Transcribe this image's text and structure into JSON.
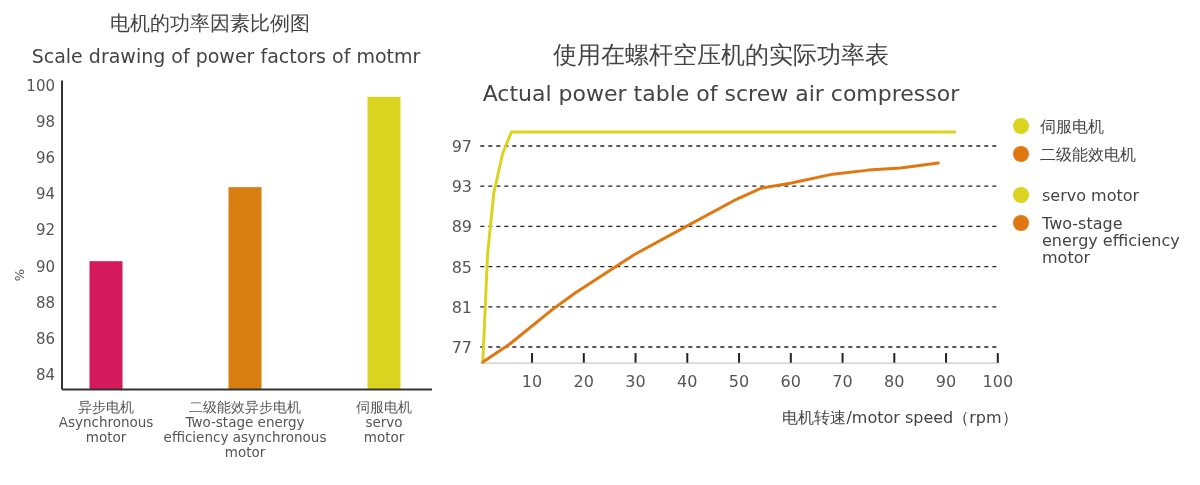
{
  "chart_data": [
    {
      "type": "bar",
      "title": "电机的功率因素比例图",
      "subtitle": "Scale drawing of power factors of motmr",
      "ylabel": "%",
      "categories": [
        "异步电机\nAsynchronous\nmotor",
        "二级能效异步电机\nTwo-stage energy\nefficiency asynchronous\nmotor",
        "伺服电机\nservo\nmotor"
      ],
      "values": [
        90.3,
        94.4,
        99.4
      ],
      "colors": [
        "#d41a5a",
        "#d97f12",
        "#dad320"
      ],
      "ylim": [
        83.2,
        100.3
      ],
      "yticks": [
        84,
        86,
        88,
        90,
        92,
        94,
        96,
        98,
        100
      ],
      "grid": false
    },
    {
      "type": "line",
      "title": "使用在螺杆空压机的实际功率表",
      "subtitle": "Actual power table of screw air compressor",
      "xlabel": "电机转速/motor speed（rpm）",
      "series": [
        {
          "name": "伺服电机",
          "color": "#dad320",
          "x": [
            0.5,
            1.4,
            2.6,
            4.3,
            6.0,
            91.7
          ],
          "values": [
            75.6,
            86.2,
            92.3,
            96.2,
            98.4,
            98.4
          ]
        },
        {
          "name": "二级能效电机",
          "color": "#e07812",
          "x": [
            0.5,
            5.7,
            13.6,
            18.4,
            27.1,
            29.8,
            39.8,
            49.5,
            54.3,
            59.9,
            68.1,
            75.0,
            81.2,
            88.5
          ],
          "values": [
            75.5,
            77.3,
            80.6,
            82.4,
            85.3,
            86.2,
            89.0,
            91.7,
            92.8,
            93.3,
            94.2,
            94.6,
            94.8,
            95.3
          ]
        }
      ],
      "annotations": [
        "servo motor",
        "Two-stage\nenergy efficiency\nmotor"
      ],
      "xlim": [
        0,
        100
      ],
      "ylim": [
        75.4,
        98.6
      ],
      "xticks": [
        10,
        20,
        30,
        40,
        50,
        60,
        70,
        80,
        90,
        100
      ],
      "yticks": [
        77,
        81,
        85,
        89,
        93,
        97
      ],
      "grid": "y",
      "line_style": "solid",
      "marker": "none",
      "legend": "right"
    }
  ]
}
